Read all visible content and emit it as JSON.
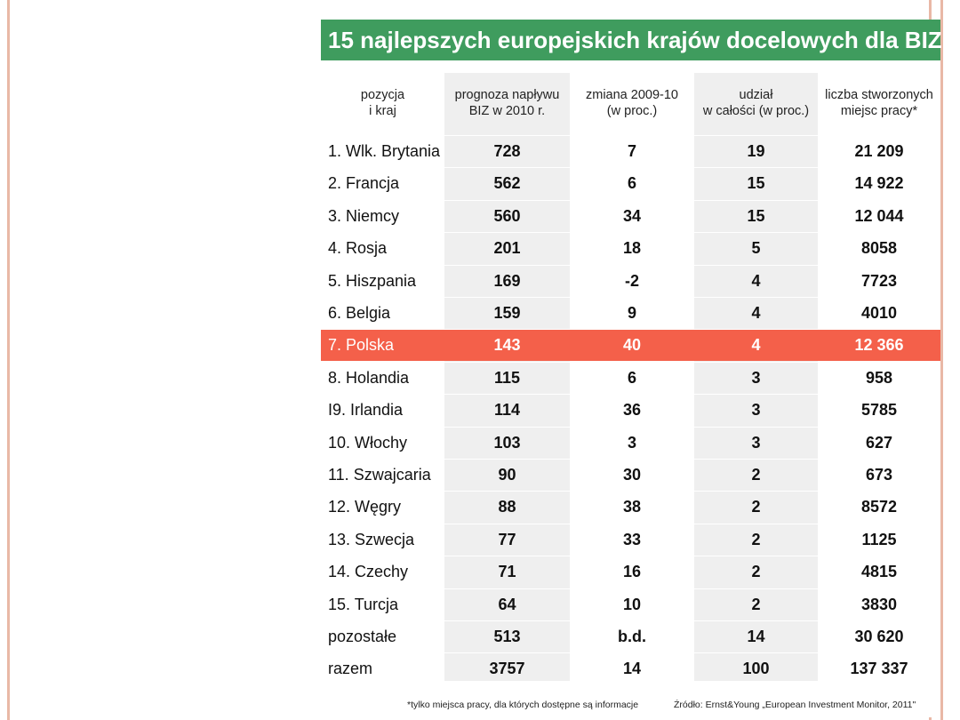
{
  "title": "15 najlepszych europejskich krajów docelowych dla BIZ",
  "table": {
    "header": [
      "pozycja\ni kraj",
      "prognoza napływu\nBIZ w 2010 r.",
      "zmiana  2009-10\n(w proc.)",
      "udział\nw całości (w proc.)",
      "liczba stworzonych\nmiejsc pracy*"
    ],
    "rows": [
      [
        "1. Wlk. Brytania",
        "728",
        "7",
        "19",
        "21 209"
      ],
      [
        "2. Francja",
        "562",
        "6",
        "15",
        "14 922"
      ],
      [
        "3. Niemcy",
        "560",
        "34",
        "15",
        "12 044"
      ],
      [
        "4. Rosja",
        "201",
        "18",
        "5",
        "8058"
      ],
      [
        "5. Hiszpania",
        "169",
        "-2",
        "4",
        "7723"
      ],
      [
        "6. Belgia",
        "159",
        "9",
        "4",
        "4010"
      ],
      [
        "7. Polska",
        "143",
        "40",
        "4",
        "12 366"
      ],
      [
        "8. Holandia",
        "115",
        "6",
        "3",
        "958"
      ],
      [
        "I9. Irlandia",
        "114",
        "36",
        "3",
        "5785"
      ],
      [
        "10. Włochy",
        "103",
        "3",
        "3",
        "627"
      ],
      [
        "11. Szwajcaria",
        "90",
        "30",
        "2",
        "673"
      ],
      [
        "12. Węgry",
        "88",
        "38",
        "2",
        "8572"
      ],
      [
        "13. Szwecja",
        "77",
        "33",
        "2",
        "1125"
      ],
      [
        "14. Czechy",
        "71",
        "16",
        "2",
        "4815"
      ],
      [
        "15. Turcja",
        "64",
        "10",
        "2",
        "3830"
      ],
      [
        "pozostałe",
        "513",
        "b.d.",
        "14",
        "30 620"
      ],
      [
        "razem",
        "3757",
        "14",
        "100",
        "137 337"
      ]
    ]
  },
  "footnote": "*tylko miejsca pracy, dla których dostępne są informacje",
  "source": "Źródło: Ernst&Young „European Investment Monitor, 2011\""
}
